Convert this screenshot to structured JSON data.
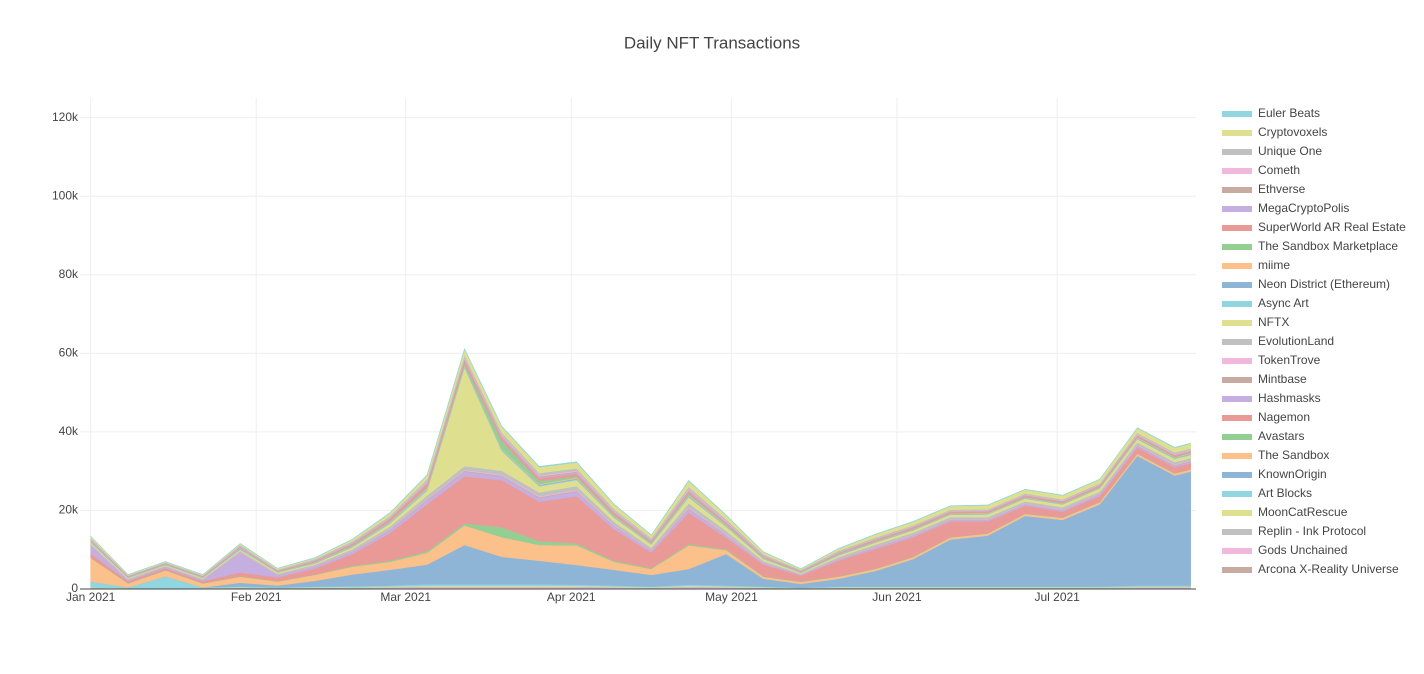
{
  "chart_data": {
    "type": "stacked_area",
    "title": "Daily NFT Transactions",
    "x": [
      0,
      7,
      14,
      21,
      28,
      35,
      42,
      49,
      56,
      63,
      70,
      77,
      84,
      91,
      98,
      105,
      112,
      119,
      126,
      133,
      140,
      147,
      154,
      161,
      168,
      175,
      182,
      189,
      196,
      203,
      206
    ],
    "xlim": [
      -2,
      207
    ],
    "xticks": [
      {
        "value": 0,
        "label": "Jan 2021"
      },
      {
        "value": 31,
        "label": "Feb 2021"
      },
      {
        "value": 59,
        "label": "Mar 2021"
      },
      {
        "value": 90,
        "label": "Apr 2021"
      },
      {
        "value": 120,
        "label": "May 2021"
      },
      {
        "value": 151,
        "label": "Jun 2021"
      },
      {
        "value": 181,
        "label": "Jul 2021"
      }
    ],
    "ylim": [
      0,
      125000
    ],
    "yticks": [
      0,
      {
        "value": 20000,
        "label": "20k"
      },
      {
        "value": 40000,
        "label": "40k"
      },
      {
        "value": 60000,
        "label": "60k"
      },
      {
        "value": 80000,
        "label": "80k"
      },
      {
        "value": 100000,
        "label": "100k"
      },
      {
        "value": 120000,
        "label": "120k"
      }
    ],
    "grid": true,
    "legend": "right",
    "series": [
      {
        "name": "Euler Beats",
        "color": "#8fd6e0",
        "values": [
          100,
          50,
          50,
          50,
          100,
          50,
          100,
          100,
          150,
          200,
          200,
          200,
          200,
          200,
          150,
          100,
          200,
          150,
          100,
          50,
          100,
          100,
          100,
          100,
          100,
          100,
          100,
          100,
          150,
          150,
          150
        ]
      },
      {
        "name": "Cryptovoxels",
        "color": "#dfe08f",
        "values": [
          500,
          200,
          200,
          200,
          300,
          300,
          300,
          500,
          700,
          1000,
          1500,
          1500,
          1500,
          1500,
          1200,
          800,
          1500,
          1000,
          600,
          300,
          500,
          800,
          900,
          900,
          1000,
          1000,
          1000,
          1000,
          1200,
          1200,
          1200
        ]
      },
      {
        "name": "Unique One",
        "color": "#c0c0c0",
        "values": [
          200,
          100,
          100,
          100,
          200,
          200,
          200,
          300,
          300,
          500,
          600,
          600,
          600,
          600,
          500,
          400,
          600,
          500,
          300,
          200,
          300,
          300,
          300,
          300,
          300,
          300,
          300,
          300,
          400,
          400,
          400
        ]
      },
      {
        "name": "Cometh",
        "color": "#f2b8dc",
        "values": [
          100,
          50,
          50,
          50,
          100,
          50,
          100,
          100,
          150,
          200,
          200,
          200,
          200,
          200,
          150,
          100,
          200,
          150,
          100,
          50,
          100,
          100,
          100,
          100,
          100,
          100,
          100,
          100,
          150,
          150,
          150
        ]
      },
      {
        "name": "Ethverse",
        "color": "#c7aba2",
        "values": [
          100,
          50,
          50,
          50,
          100,
          50,
          100,
          100,
          150,
          200,
          200,
          200,
          200,
          200,
          150,
          100,
          200,
          150,
          100,
          50,
          100,
          100,
          100,
          100,
          100,
          100,
          100,
          100,
          150,
          150,
          150
        ]
      },
      {
        "name": "MegaCryptoPolis",
        "color": "#c5aee0",
        "values": [
          200,
          100,
          100,
          100,
          300,
          100,
          100,
          200,
          200,
          300,
          300,
          300,
          300,
          300,
          200,
          200,
          300,
          200,
          100,
          100,
          100,
          100,
          100,
          100,
          100,
          100,
          100,
          100,
          100,
          100,
          100
        ]
      },
      {
        "name": "SuperWorld AR Real Estate",
        "color": "#e99a97",
        "values": [
          100,
          100,
          100,
          100,
          100,
          100,
          200,
          300,
          500,
          800,
          800,
          800,
          700,
          700,
          500,
          300,
          500,
          300,
          200,
          100,
          200,
          300,
          300,
          300,
          300,
          300,
          300,
          300,
          300,
          300,
          300
        ]
      },
      {
        "name": "The Sandbox Marketplace",
        "color": "#93cf93",
        "values": [
          100,
          100,
          100,
          100,
          100,
          100,
          100,
          200,
          200,
          300,
          500,
          2000,
          800,
          400,
          300,
          200,
          300,
          200,
          100,
          100,
          100,
          100,
          100,
          100,
          100,
          100,
          100,
          100,
          100,
          100,
          100
        ]
      },
      {
        "name": "miime",
        "color": "#fcc08a",
        "values": [
          100,
          50,
          50,
          50,
          100,
          50,
          100,
          100,
          150,
          200,
          200,
          200,
          200,
          200,
          150,
          100,
          200,
          150,
          100,
          50,
          100,
          100,
          100,
          100,
          100,
          100,
          100,
          100,
          150,
          150,
          150
        ]
      },
      {
        "name": "Neon District (Ethereum)",
        "color": "#8fb5d6",
        "values": [
          100,
          50,
          50,
          50,
          100,
          50,
          100,
          100,
          150,
          200,
          200,
          200,
          200,
          200,
          150,
          100,
          200,
          150,
          100,
          50,
          100,
          100,
          100,
          100,
          100,
          100,
          100,
          100,
          150,
          150,
          150
        ]
      },
      {
        "name": "Async Art",
        "color": "#8fd6e0",
        "values": [
          100,
          50,
          50,
          50,
          100,
          50,
          100,
          100,
          150,
          200,
          200,
          200,
          200,
          200,
          150,
          100,
          200,
          150,
          100,
          50,
          100,
          100,
          100,
          100,
          100,
          100,
          100,
          100,
          150,
          150,
          150
        ]
      },
      {
        "name": "NFTX",
        "color": "#dfe08f",
        "values": [
          300,
          200,
          200,
          200,
          300,
          300,
          300,
          500,
          800,
          1200,
          25000,
          5000,
          1500,
          1500,
          1000,
          800,
          1500,
          1000,
          500,
          200,
          400,
          500,
          600,
          600,
          700,
          700,
          700,
          800,
          800,
          800,
          800
        ]
      },
      {
        "name": "EvolutionLand",
        "color": "#c0c0c0",
        "values": [
          300,
          200,
          200,
          200,
          300,
          300,
          300,
          400,
          500,
          800,
          1000,
          1000,
          1000,
          1000,
          800,
          500,
          1000,
          800,
          400,
          200,
          400,
          500,
          500,
          500,
          500,
          500,
          500,
          500,
          600,
          600,
          600
        ]
      },
      {
        "name": "TokenTrove",
        "color": "#f2b8dc",
        "values": [
          100,
          50,
          50,
          50,
          100,
          50,
          100,
          100,
          150,
          200,
          200,
          200,
          200,
          200,
          150,
          100,
          200,
          150,
          100,
          50,
          100,
          100,
          100,
          100,
          100,
          100,
          100,
          100,
          150,
          150,
          150
        ]
      },
      {
        "name": "Mintbase",
        "color": "#c7aba2",
        "values": [
          100,
          50,
          50,
          50,
          100,
          50,
          100,
          100,
          150,
          200,
          200,
          200,
          200,
          200,
          150,
          100,
          200,
          150,
          100,
          50,
          100,
          100,
          100,
          100,
          100,
          100,
          100,
          100,
          150,
          150,
          150
        ]
      },
      {
        "name": "Hashmasks",
        "color": "#c5aee0",
        "values": [
          2000,
          300,
          300,
          300,
          5000,
          500,
          500,
          600,
          800,
          1000,
          1200,
          1000,
          1000,
          1200,
          800,
          500,
          1000,
          600,
          300,
          200,
          300,
          400,
          400,
          400,
          400,
          400,
          400,
          400,
          400,
          400,
          400
        ]
      },
      {
        "name": "Nagemon",
        "color": "#e99a97",
        "values": [
          1000,
          500,
          500,
          500,
          1000,
          1000,
          1500,
          3000,
          7000,
          12000,
          12000,
          12000,
          10000,
          12000,
          8000,
          4000,
          8000,
          3000,
          3000,
          1500,
          4000,
          5000,
          5000,
          4000,
          3000,
          2000,
          1500,
          1500,
          1500,
          1500,
          1500
        ]
      },
      {
        "name": "Avastars",
        "color": "#93cf93",
        "values": [
          100,
          100,
          100,
          100,
          100,
          100,
          100,
          200,
          300,
          400,
          500,
          2500,
          1000,
          500,
          300,
          200,
          300,
          200,
          100,
          100,
          100,
          100,
          100,
          100,
          100,
          100,
          100,
          100,
          100,
          100,
          100
        ]
      },
      {
        "name": "The Sandbox",
        "color": "#fcc08a",
        "values": [
          6000,
          1000,
          1500,
          1000,
          1500,
          1000,
          1500,
          2000,
          2000,
          3000,
          5000,
          5000,
          4000,
          5000,
          2000,
          1500,
          6000,
          1000,
          500,
          500,
          500,
          500,
          500,
          500,
          500,
          500,
          500,
          500,
          500,
          500,
          500
        ]
      },
      {
        "name": "KnownOrigin",
        "color": "#8fb5d6",
        "values": [
          0,
          0,
          0,
          0,
          1000,
          500,
          1500,
          3000,
          4000,
          5000,
          10000,
          7000,
          6000,
          5000,
          4000,
          3000,
          4000,
          8000,
          2000,
          1000,
          2000,
          4000,
          7000,
          12000,
          13000,
          18000,
          17000,
          21000,
          33000,
          28000,
          29000
        ]
      },
      {
        "name": "Art Blocks",
        "color": "#8fd6e0",
        "values": [
          1500,
          200,
          3000,
          200,
          200,
          200,
          200,
          300,
          300,
          400,
          400,
          400,
          400,
          300,
          300,
          200,
          300,
          300,
          200,
          100,
          200,
          200,
          200,
          200,
          200,
          200,
          200,
          200,
          300,
          300,
          300
        ]
      },
      {
        "name": "MoonCatRescue",
        "color": "#dfe08f",
        "values": [
          100,
          50,
          50,
          50,
          100,
          50,
          100,
          100,
          150,
          200,
          200,
          200,
          200,
          200,
          150,
          100,
          200,
          150,
          100,
          50,
          100,
          100,
          100,
          100,
          100,
          100,
          100,
          100,
          150,
          150,
          150
        ]
      },
      {
        "name": "Replin - Ink Protocol",
        "color": "#c0c0c0",
        "values": [
          100,
          50,
          50,
          50,
          100,
          50,
          100,
          100,
          150,
          200,
          200,
          200,
          200,
          200,
          150,
          100,
          200,
          150,
          100,
          50,
          100,
          100,
          100,
          100,
          100,
          100,
          100,
          100,
          150,
          150,
          150
        ]
      },
      {
        "name": "Gods Unchained",
        "color": "#f2b8dc",
        "values": [
          100,
          50,
          50,
          50,
          100,
          50,
          100,
          100,
          150,
          200,
          200,
          200,
          200,
          200,
          150,
          100,
          200,
          150,
          100,
          50,
          100,
          100,
          100,
          100,
          100,
          100,
          100,
          100,
          150,
          150,
          150
        ]
      },
      {
        "name": "Arcona X-Reality Universe",
        "color": "#c7aba2",
        "values": [
          100,
          50,
          50,
          50,
          100,
          50,
          100,
          100,
          150,
          200,
          200,
          200,
          200,
          200,
          150,
          100,
          200,
          150,
          100,
          50,
          100,
          100,
          100,
          100,
          100,
          100,
          100,
          100,
          150,
          150,
          150
        ]
      }
    ]
  }
}
